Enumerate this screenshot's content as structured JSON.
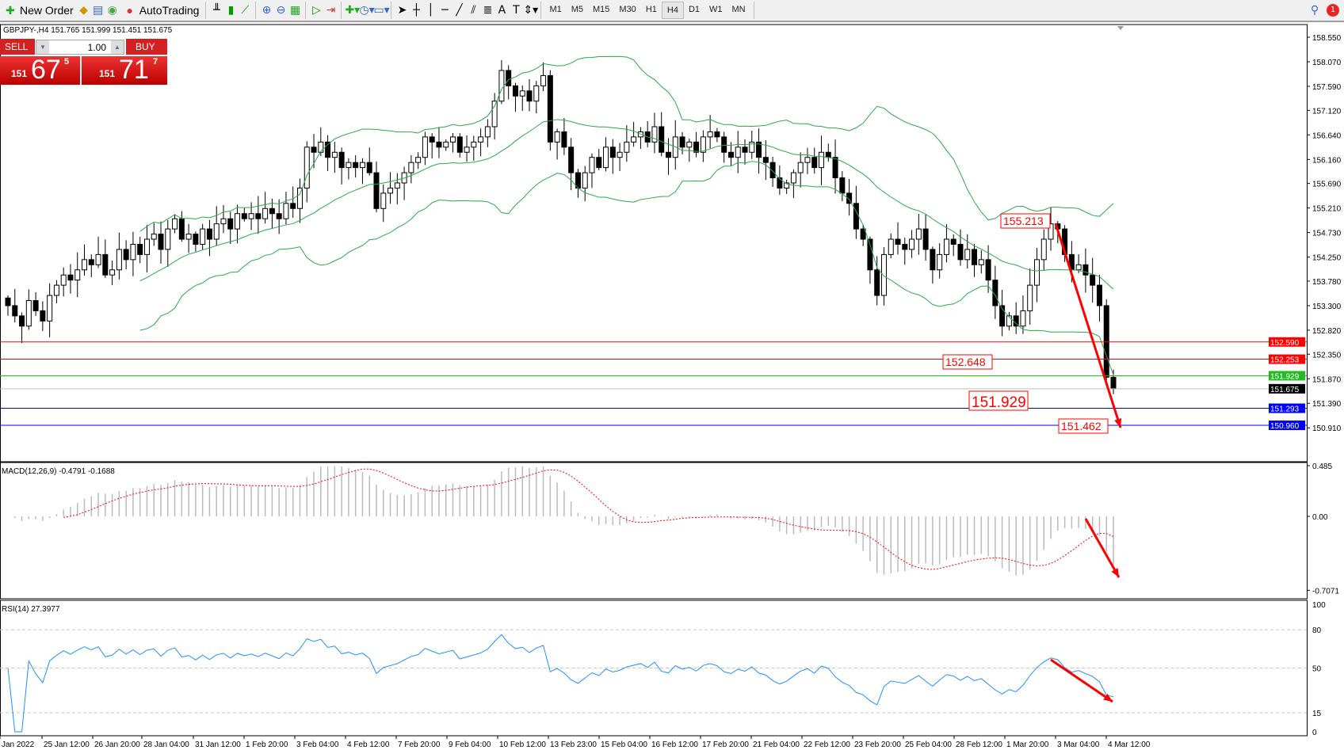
{
  "toolbar": {
    "new_order": "New Order",
    "autotrading": "AutoTrading",
    "timeframes": [
      "M1",
      "M5",
      "M15",
      "M30",
      "H1",
      "H4",
      "D1",
      "W1",
      "MN"
    ],
    "active_timeframe": "H4",
    "notification_count": "1"
  },
  "chart": {
    "header": "GBPJPY-,H4  151.765 151.999 151.451 151.675",
    "trade_panel": {
      "sell_label": "SELL",
      "buy_label": "BUY",
      "lot": "1.00",
      "sell_prefix": "151",
      "sell_big": "67",
      "sell_sup": "5",
      "buy_prefix": "151",
      "buy_big": "71",
      "buy_sup": "7"
    },
    "price_ticks": [
      "158.550",
      "158.070",
      "157.590",
      "157.120",
      "156.640",
      "156.160",
      "155.690",
      "155.210",
      "154.730",
      "154.250",
      "153.780",
      "153.300",
      "152.820",
      "152.350",
      "151.870",
      "151.390",
      "150.910"
    ],
    "price_lines": [
      {
        "price": "152.590",
        "color": "#ff0000"
      },
      {
        "price": "152.253",
        "color": "#ff0000"
      },
      {
        "price": "151.929",
        "color": "#22bb22"
      },
      {
        "price": "151.675",
        "color": "#000000",
        "line": "#c0c0c0"
      },
      {
        "price": "151.293",
        "color": "#0000ff"
      },
      {
        "price": "150.960",
        "color": "#0000ff"
      }
    ],
    "annotations": [
      "155.213",
      "152.648",
      "151.929",
      "151.462"
    ],
    "bands_color": "#2ca84a",
    "arrow_color": "#ff0000"
  },
  "macd": {
    "label": "MACD(12,26,9) -0.4791 -0.1688",
    "ticks": [
      "0.485",
      "0.00",
      "-0.7071"
    ]
  },
  "rsi": {
    "label": "RSI(14) 27.3977",
    "ticks": [
      "100",
      "80",
      "50",
      "15",
      "0"
    ],
    "line_color": "#1e90ff"
  },
  "time_labels": [
    "Jan 2022",
    "25 Jan 12:00",
    "26 Jan 20:00",
    "28 Jan 04:00",
    "31 Jan 12:00",
    "1 Feb 20:00",
    "3 Feb 04:00",
    "4 Feb 12:00",
    "7 Feb 20:00",
    "9 Feb 04:00",
    "10 Feb 12:00",
    "13 Feb 23:00",
    "15 Feb 04:00",
    "16 Feb 12:00",
    "17 Feb 20:00",
    "21 Feb 04:00",
    "22 Feb 12:00",
    "23 Feb 20:00",
    "25 Feb 04:00",
    "28 Feb 12:00",
    "1 Mar 20:00",
    "3 Mar 04:00",
    "4 Mar 12:00"
  ],
  "chart_data": {
    "type": "candlestick",
    "symbol": "GBPJPY-",
    "timeframe": "H4",
    "ylim": [
      150.91,
      158.55
    ],
    "closes": [
      153.3,
      153.1,
      152.9,
      153.4,
      153.2,
      153.0,
      153.5,
      153.7,
      153.9,
      153.8,
      154.0,
      154.2,
      154.1,
      154.3,
      153.9,
      154.0,
      154.4,
      154.2,
      154.5,
      154.3,
      154.6,
      154.7,
      154.4,
      154.8,
      155.0,
      154.6,
      154.7,
      154.5,
      154.8,
      154.6,
      154.9,
      155.0,
      154.8,
      155.1,
      155.0,
      155.1,
      155.0,
      155.2,
      155.1,
      155.0,
      155.3,
      155.2,
      155.6,
      156.4,
      156.3,
      156.5,
      156.2,
      156.3,
      156.0,
      156.1,
      156.0,
      156.1,
      155.9,
      155.2,
      155.5,
      155.6,
      155.7,
      155.9,
      156.1,
      156.2,
      156.6,
      156.5,
      156.4,
      156.5,
      156.6,
      156.3,
      156.4,
      156.5,
      156.6,
      156.8,
      157.3,
      157.9,
      157.6,
      157.4,
      157.5,
      157.3,
      157.6,
      157.8,
      156.5,
      156.7,
      156.4,
      155.9,
      155.6,
      155.9,
      156.2,
      156.0,
      156.4,
      156.2,
      156.3,
      156.5,
      156.6,
      156.7,
      156.5,
      156.8,
      156.3,
      156.2,
      156.6,
      156.4,
      156.5,
      156.3,
      156.6,
      156.7,
      156.6,
      156.3,
      156.2,
      156.4,
      156.3,
      156.5,
      156.2,
      156.1,
      155.8,
      155.6,
      155.7,
      155.9,
      156.1,
      156.2,
      156.0,
      156.3,
      156.2,
      155.8,
      155.5,
      155.3,
      154.8,
      154.6,
      154.0,
      153.5,
      154.3,
      154.6,
      154.5,
      154.4,
      154.6,
      154.8,
      154.4,
      154.0,
      154.3,
      154.6,
      154.5,
      154.2,
      154.4,
      154.1,
      154.2,
      153.8,
      153.3,
      152.9,
      153.1,
      152.9,
      153.2,
      153.7,
      154.2,
      154.6,
      154.9,
      154.8,
      154.3,
      154.0,
      154.1,
      153.9,
      153.7,
      153.3,
      151.9,
      151.675
    ]
  }
}
